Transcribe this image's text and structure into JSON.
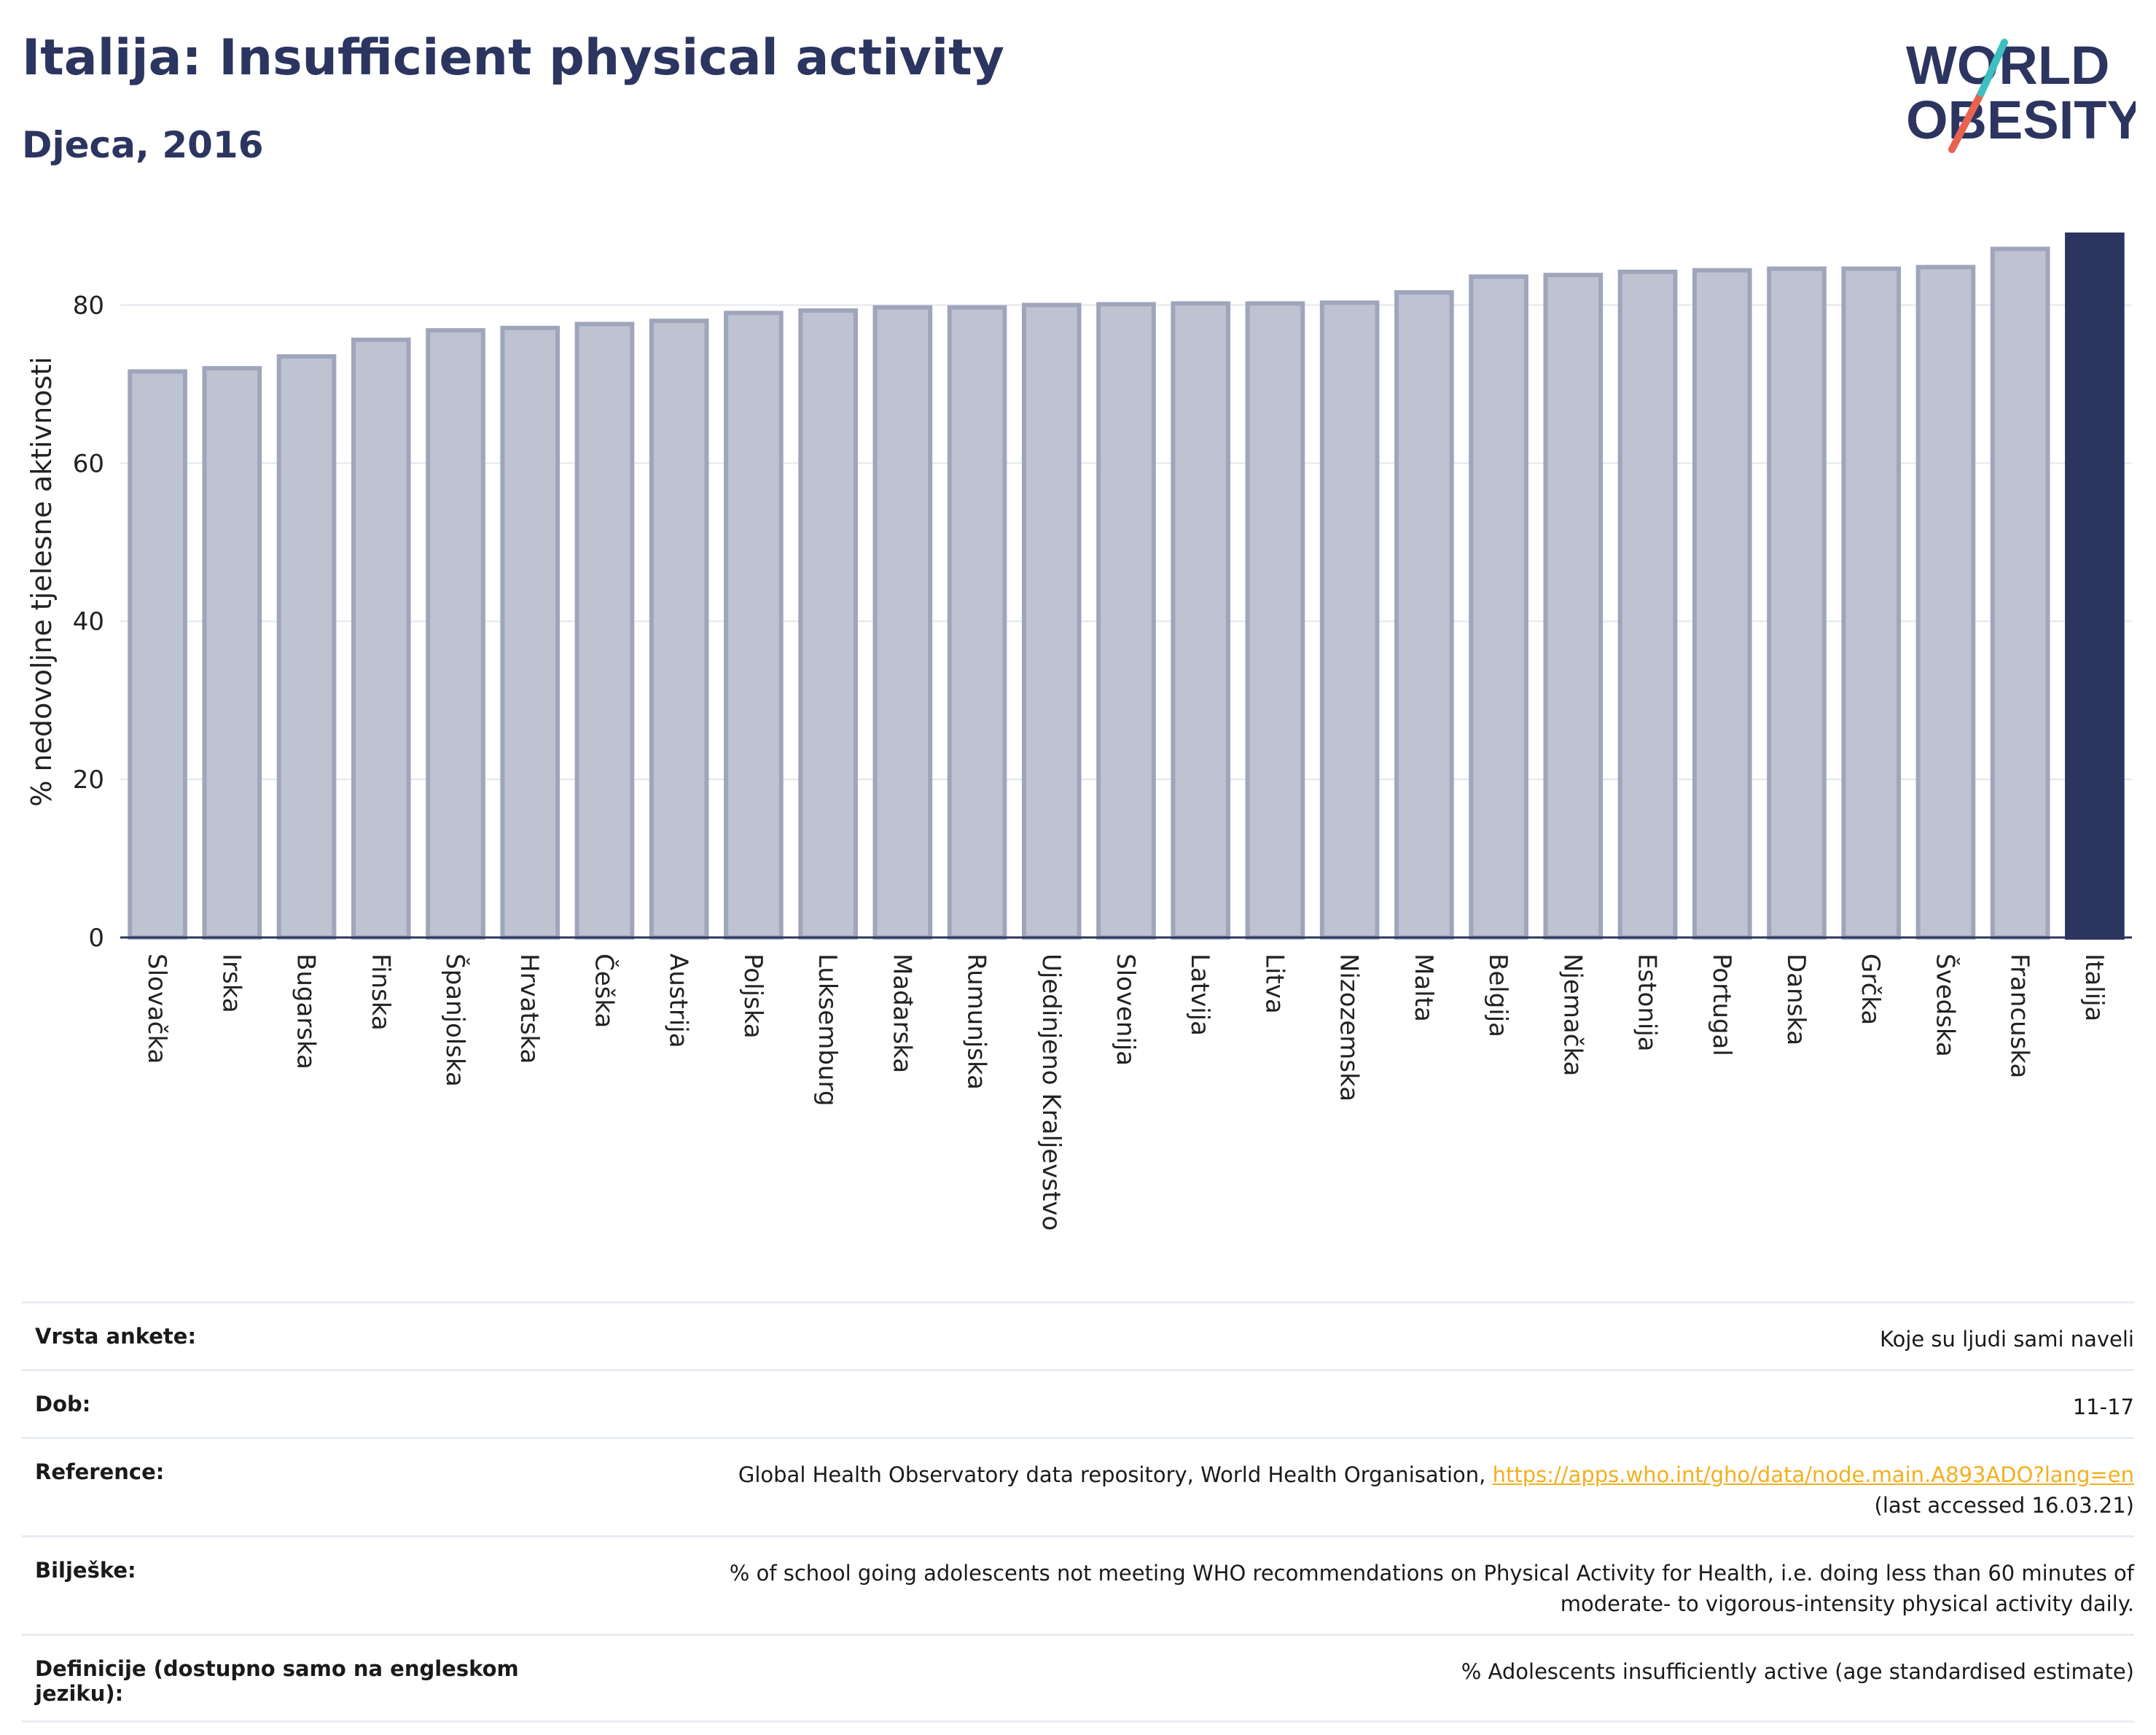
{
  "header": {
    "title": "Italija: Insufficient physical activity",
    "subtitle": "Djeca, 2016"
  },
  "logo": {
    "line1": "WORLD",
    "line2": "OBESITY",
    "accent": "#e8624f",
    "accent2": "#3cbfc0",
    "color": "#2c3560"
  },
  "chart_data": {
    "type": "bar",
    "ylabel": "% nedovoljne tjelesne aktivnosti",
    "xlabel": "",
    "ylim": [
      0,
      90
    ],
    "yticks": [
      0,
      20,
      40,
      60,
      80
    ],
    "grid": true,
    "categories": [
      "Slovačka",
      "Irska",
      "Bugarska",
      "Finska",
      "Španjolska",
      "Hrvatska",
      "Češka",
      "Austrija",
      "Poljska",
      "Luksemburg",
      "Mađarska",
      "Rumunjska",
      "Ujedinjeno Kraljevstvo",
      "Slovenija",
      "Latvija",
      "Litva",
      "Nizozemska",
      "Malta",
      "Belgija",
      "Njemačka",
      "Estonija",
      "Portugal",
      "Danska",
      "Grčka",
      "Švedska",
      "Francuska",
      "Italija"
    ],
    "values": [
      71.6,
      72.0,
      73.5,
      75.6,
      76.8,
      77.1,
      77.6,
      78.0,
      79.0,
      79.3,
      79.7,
      79.7,
      80.0,
      80.1,
      80.2,
      80.2,
      80.3,
      81.6,
      83.6,
      83.8,
      84.2,
      84.4,
      84.6,
      84.6,
      84.8,
      87.1,
      88.9
    ],
    "highlight": "Italija",
    "colors": {
      "bar": "#bfc3d1",
      "bar_edge": "#9fa5bb",
      "highlight": "#2c3560"
    }
  },
  "meta": {
    "rows": [
      {
        "key": "Vrsta ankete:",
        "value": "Koje su ljudi sami naveli"
      },
      {
        "key": "Dob:",
        "value": "11-17"
      },
      {
        "key": "Reference:",
        "value": "Global Health Observatory data repository, World Health Organisation, ",
        "link": "https://apps.who.int/gho/data/node.main.A893ADO?lang=en",
        "value2": "(last accessed 16.03.21)"
      },
      {
        "key": "Bilješke:",
        "value": "% of school going adolescents not meeting WHO recommendations on Physical Activity for Health, i.e. doing less than 60 minutes of",
        "value2": "moderate- to vigorous-intensity physical activity daily."
      },
      {
        "key": "Definicije (dostupno samo na engleskom jeziku):",
        "value": "% Adolescents insufficiently active (age standardised estimate)"
      }
    ]
  }
}
